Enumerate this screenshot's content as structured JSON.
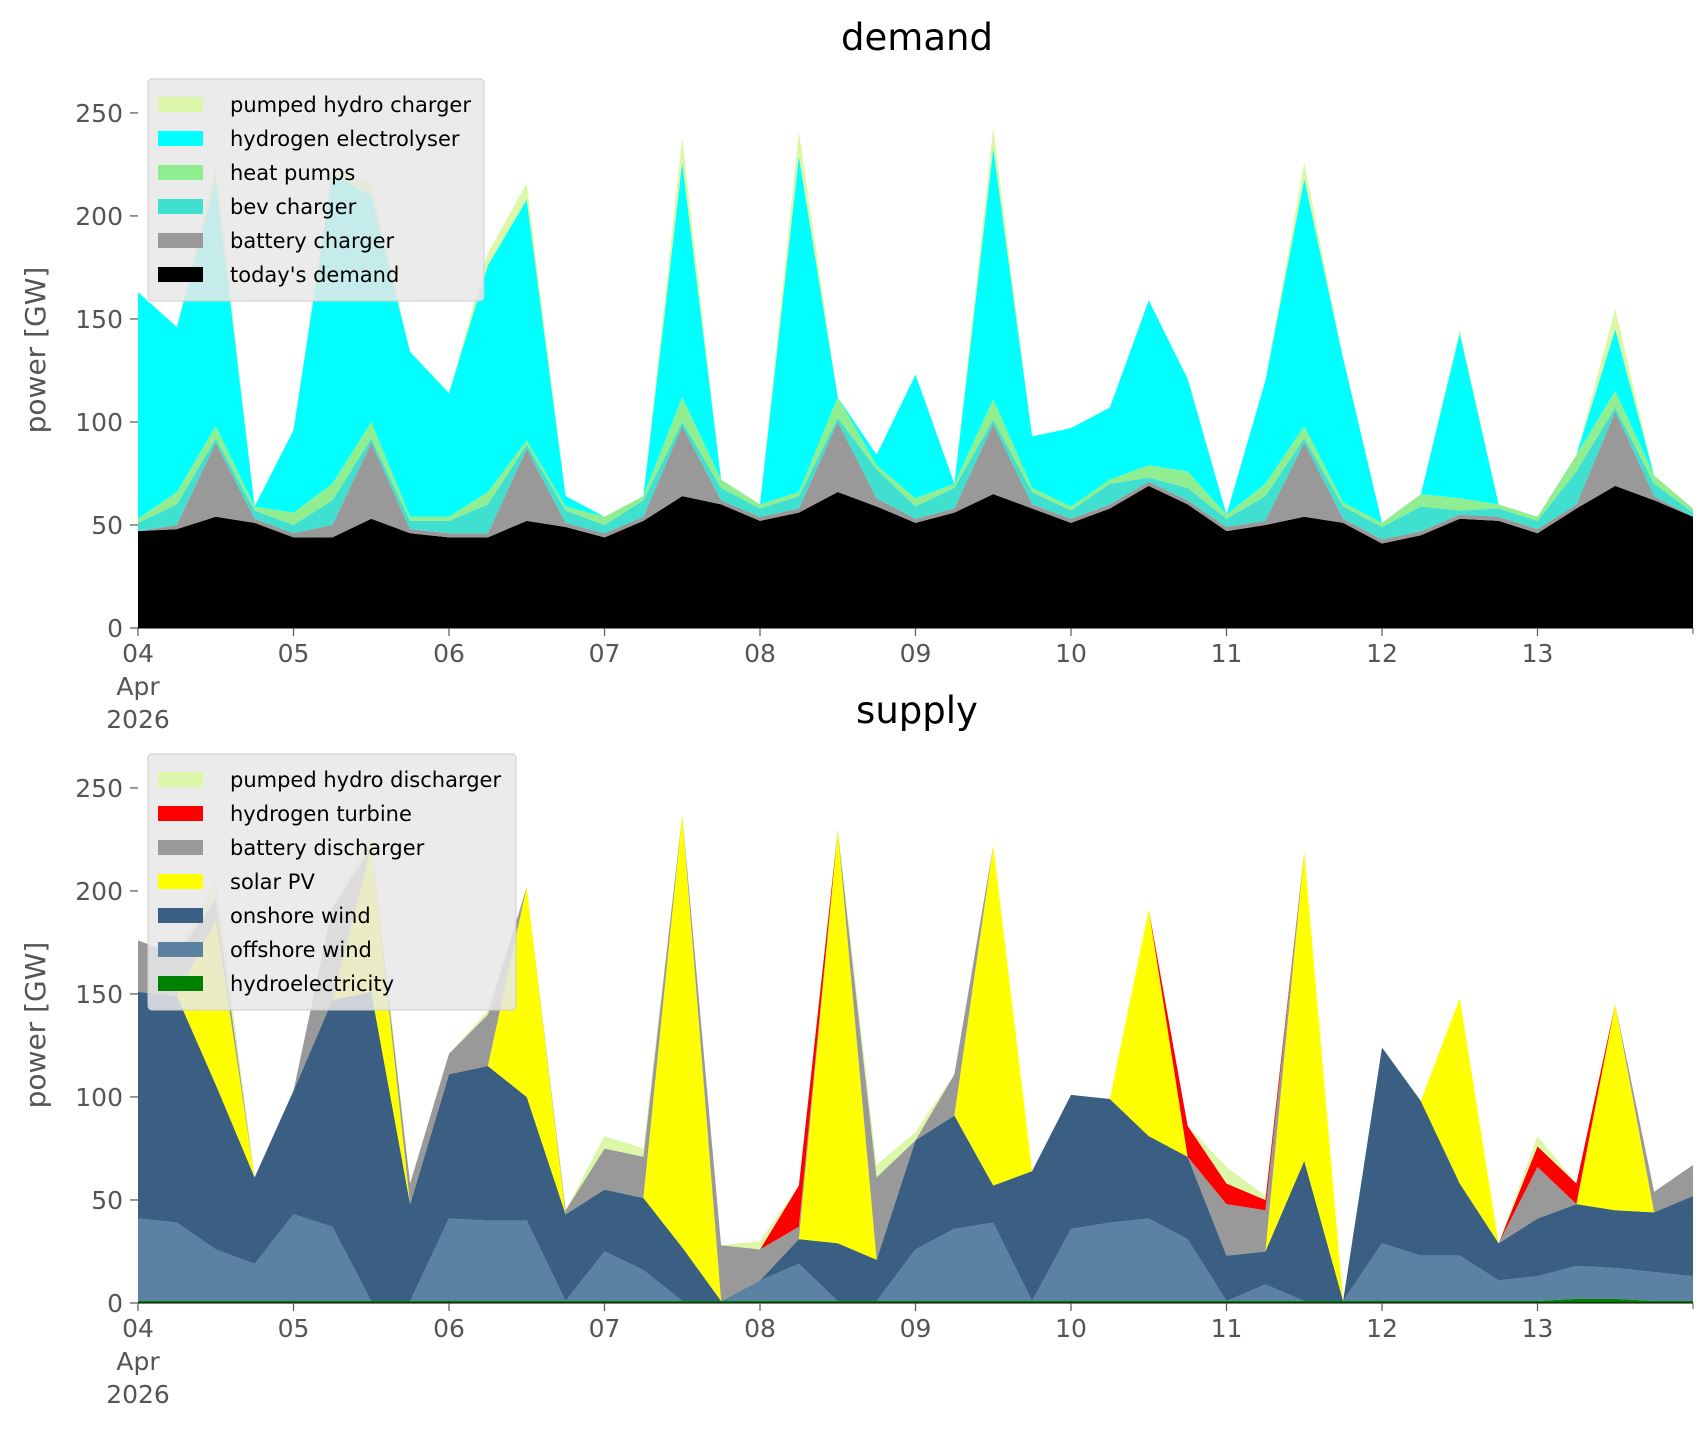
{
  "chart_data": [
    {
      "type": "area",
      "title": "demand",
      "ylabel": "power [GW]",
      "xlabel": "",
      "ylim": [
        0,
        265
      ],
      "yticks": [
        0,
        50,
        100,
        150,
        200,
        250
      ],
      "xlim": [
        0,
        10
      ],
      "xticks": [
        {
          "pos": 0,
          "label": "04",
          "sub": [
            "Apr",
            "2026"
          ]
        },
        {
          "pos": 1,
          "label": "05"
        },
        {
          "pos": 2,
          "label": "06"
        },
        {
          "pos": 3,
          "label": "07"
        },
        {
          "pos": 4,
          "label": "08"
        },
        {
          "pos": 5,
          "label": "09"
        },
        {
          "pos": 6,
          "label": "10"
        },
        {
          "pos": 7,
          "label": "11"
        },
        {
          "pos": 8,
          "label": "12"
        },
        {
          "pos": 9,
          "label": "13"
        }
      ],
      "grid": false,
      "legend_position": "upper-left",
      "x": [
        0,
        0.25,
        0.5,
        0.75,
        1,
        1.25,
        1.5,
        1.75,
        2,
        2.25,
        2.5,
        2.75,
        3,
        3.25,
        3.5,
        3.75,
        4,
        4.25,
        4.5,
        4.75,
        5,
        5.25,
        5.5,
        5.75,
        6,
        6.25,
        6.5,
        6.75,
        7,
        7.25,
        7.5,
        7.75,
        8,
        8.25,
        8.5,
        8.75,
        9,
        9.25,
        9.5,
        9.75,
        10
      ],
      "series": [
        {
          "name": "today's demand",
          "color": "#000000",
          "values": [
            47,
            48,
            54,
            51,
            44,
            44,
            53,
            46,
            44,
            44,
            52,
            49,
            44,
            52,
            64,
            60,
            52,
            56,
            66,
            59,
            51,
            56,
            65,
            58,
            51,
            58,
            69,
            60,
            47,
            50,
            54,
            51,
            41,
            45,
            53,
            52,
            46,
            58,
            69,
            62,
            54
          ]
        },
        {
          "name": "battery charger",
          "color": "#999999",
          "values": [
            0,
            2,
            36,
            2,
            2,
            6,
            37,
            2,
            2,
            2,
            35,
            2,
            2,
            2,
            34,
            2,
            2,
            2,
            34,
            4,
            2,
            2,
            34,
            2,
            2,
            2,
            2,
            2,
            2,
            2,
            36,
            2,
            2,
            2,
            2,
            2,
            2,
            2,
            36,
            2,
            0
          ]
        },
        {
          "name": "bev charger",
          "color": "#40e0d0",
          "values": [
            4,
            10,
            2,
            4,
            4,
            12,
            2,
            4,
            6,
            14,
            2,
            6,
            4,
            8,
            2,
            6,
            4,
            6,
            2,
            14,
            6,
            10,
            2,
            6,
            4,
            10,
            2,
            6,
            4,
            12,
            2,
            6,
            6,
            12,
            2,
            4,
            4,
            16,
            2,
            6,
            2
          ]
        },
        {
          "name": "heat pumps",
          "color": "#90ee90",
          "values": [
            2,
            6,
            6,
            2,
            6,
            8,
            8,
            2,
            2,
            6,
            2,
            2,
            4,
            2,
            12,
            4,
            2,
            2,
            10,
            2,
            4,
            2,
            10,
            2,
            2,
            2,
            6,
            8,
            2,
            6,
            6,
            2,
            2,
            6,
            6,
            2,
            2,
            8,
            8,
            4,
            2
          ]
        },
        {
          "name": "hydrogen electrolyser",
          "color": "#00ffff",
          "values": [
            110,
            80,
            120,
            0,
            40,
            150,
            110,
            80,
            60,
            110,
            117,
            5,
            0,
            0,
            114,
            0,
            0,
            163,
            0,
            5,
            60,
            0,
            122,
            25,
            38,
            35,
            80,
            45,
            0,
            50,
            120,
            70,
            0,
            0,
            80,
            0,
            0,
            0,
            30,
            0,
            0
          ]
        },
        {
          "name": "pumped hydro charger",
          "color": "#ddf7a8",
          "values": [
            0,
            0,
            6,
            0,
            0,
            4,
            6,
            0,
            0,
            6,
            8,
            0,
            0,
            0,
            12,
            0,
            0,
            12,
            0,
            0,
            0,
            0,
            10,
            0,
            0,
            0,
            0,
            0,
            0,
            0,
            8,
            0,
            0,
            0,
            2,
            0,
            0,
            0,
            10,
            0,
            0
          ]
        }
      ],
      "legend": [
        "pumped hydro charger",
        "hydrogen electrolyser",
        "heat pumps",
        "bev charger",
        "battery charger",
        "today's demand"
      ]
    },
    {
      "type": "area",
      "title": "supply",
      "ylabel": "power [GW]",
      "xlabel": "",
      "ylim": [
        0,
        265
      ],
      "yticks": [
        0,
        50,
        100,
        150,
        200,
        250
      ],
      "xlim": [
        0,
        10
      ],
      "xticks": [
        {
          "pos": 0,
          "label": "04",
          "sub": [
            "Apr",
            "2026"
          ]
        },
        {
          "pos": 1,
          "label": "05"
        },
        {
          "pos": 2,
          "label": "06"
        },
        {
          "pos": 3,
          "label": "07"
        },
        {
          "pos": 4,
          "label": "08"
        },
        {
          "pos": 5,
          "label": "09"
        },
        {
          "pos": 6,
          "label": "10"
        },
        {
          "pos": 7,
          "label": "11"
        },
        {
          "pos": 8,
          "label": "12"
        },
        {
          "pos": 9,
          "label": "13"
        }
      ],
      "grid": false,
      "legend_position": "upper-left",
      "x": [
        0,
        0.25,
        0.5,
        0.75,
        1,
        1.25,
        1.5,
        1.75,
        2,
        2.25,
        2.5,
        2.75,
        3,
        3.25,
        3.5,
        3.75,
        4,
        4.25,
        4.5,
        4.75,
        5,
        5.25,
        5.5,
        5.75,
        6,
        6.25,
        6.5,
        6.75,
        7,
        7.25,
        7.5,
        7.75,
        8,
        8.25,
        8.5,
        8.75,
        9,
        9.25,
        9.5,
        9.75,
        10
      ],
      "series": [
        {
          "name": "hydroelectricity",
          "color": "#008000",
          "values": [
            1,
            1,
            1,
            1,
            1,
            1,
            1,
            1,
            1,
            1,
            1,
            1,
            1,
            1,
            1,
            1,
            1,
            1,
            1,
            1,
            1,
            1,
            1,
            1,
            1,
            1,
            1,
            1,
            1,
            1,
            1,
            1,
            1,
            1,
            1,
            1,
            1,
            2,
            2,
            1,
            1
          ]
        },
        {
          "name": "offshore wind",
          "color": "#5b81a3",
          "values": [
            40,
            38,
            25,
            18,
            42,
            36,
            0,
            0,
            40,
            39,
            39,
            0,
            24,
            15,
            0,
            0,
            10,
            18,
            0,
            0,
            25,
            35,
            38,
            0,
            35,
            38,
            40,
            30,
            0,
            8,
            0,
            0,
            28,
            22,
            22,
            10,
            12,
            16,
            15,
            14,
            12
          ]
        },
        {
          "name": "onshore wind",
          "color": "#3a5f82",
          "values": [
            110,
            110,
            80,
            42,
            60,
            110,
            150,
            47,
            70,
            75,
            60,
            42,
            30,
            35,
            26,
            0,
            0,
            12,
            28,
            20,
            53,
            55,
            18,
            63,
            65,
            60,
            40,
            40,
            22,
            16,
            68,
            0,
            95,
            75,
            35,
            18,
            28,
            30,
            28,
            29,
            39
          ]
        },
        {
          "name": "solar PV",
          "color": "#ffff00",
          "values": [
            0,
            0,
            80,
            0,
            0,
            0,
            70,
            0,
            0,
            0,
            102,
            0,
            0,
            0,
            210,
            0,
            0,
            0,
            200,
            0,
            0,
            0,
            165,
            0,
            0,
            0,
            110,
            0,
            0,
            0,
            150,
            0,
            0,
            0,
            90,
            0,
            0,
            0,
            100,
            0,
            0
          ]
        },
        {
          "name": "battery discharger",
          "color": "#999999",
          "values": [
            25,
            20,
            10,
            0,
            0,
            45,
            0,
            10,
            10,
            25,
            0,
            2,
            20,
            20,
            0,
            27,
            15,
            6,
            0,
            40,
            0,
            20,
            0,
            0,
            0,
            0,
            0,
            0,
            25,
            20,
            0,
            0,
            0,
            0,
            0,
            0,
            25,
            0,
            0,
            10,
            15
          ]
        },
        {
          "name": "hydrogen turbine",
          "color": "#ff0000",
          "values": [
            0,
            0,
            0,
            0,
            0,
            0,
            0,
            0,
            0,
            0,
            0,
            0,
            0,
            0,
            0,
            0,
            0,
            20,
            0,
            0,
            0,
            0,
            0,
            0,
            0,
            0,
            0,
            15,
            10,
            5,
            0,
            0,
            0,
            0,
            0,
            0,
            10,
            10,
            0,
            0,
            0
          ]
        },
        {
          "name": "pumped hydro discharger",
          "color": "#ddf7a8",
          "values": [
            0,
            0,
            10,
            0,
            0,
            0,
            6,
            0,
            0,
            2,
            0,
            0,
            6,
            4,
            0,
            0,
            4,
            0,
            2,
            6,
            4,
            0,
            0,
            0,
            0,
            0,
            0,
            0,
            8,
            2,
            0,
            0,
            0,
            0,
            0,
            0,
            5,
            0,
            0,
            0,
            0
          ]
        }
      ],
      "legend": [
        "pumped hydro discharger",
        "hydrogen turbine",
        "battery discharger",
        "solar PV",
        "onshore wind",
        "offshore wind",
        "hydroelectricity"
      ]
    }
  ]
}
